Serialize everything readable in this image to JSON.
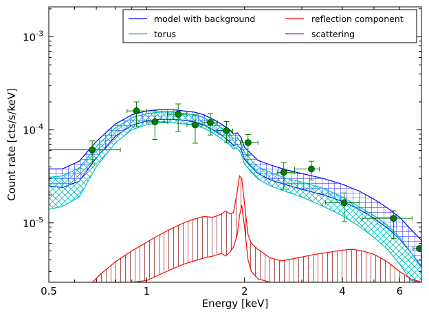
{
  "chart_data": {
    "type": "line",
    "xscale": "log",
    "yscale": "log",
    "xlim": [
      0.5,
      7.0
    ],
    "ylim": [
      2.3e-06,
      0.0021
    ],
    "xlabel": "Energy [keV]",
    "ylabel": "Count rate [cts/s/keV]",
    "x_ticks": [
      {
        "value": 0.5,
        "label": "0.5"
      },
      {
        "value": 1,
        "label": "1"
      },
      {
        "value": 2,
        "label": "2"
      },
      {
        "value": 4,
        "label": "4"
      },
      {
        "value": 6,
        "label": "6"
      }
    ],
    "y_ticks": [
      {
        "value": 1e-05,
        "base": "10",
        "exp": "-5"
      },
      {
        "value": 0.0001,
        "base": "10",
        "exp": "-4"
      },
      {
        "value": 0.001,
        "base": "10",
        "exp": "-3"
      }
    ],
    "grid": false,
    "legend_position": "top-right",
    "legend": [
      {
        "label": "model with background",
        "color": "#0000ff"
      },
      {
        "label": "reflection component",
        "color": "#ff0000"
      },
      {
        "label": "torus",
        "color": "#00bfbf"
      },
      {
        "label": "scattering",
        "color": "#bf00bf"
      }
    ],
    "series": [
      {
        "name": "model with background",
        "color": "#0000ff",
        "fill": "grid",
        "x": [
          0.5,
          0.55,
          0.62,
          0.7,
          0.8,
          0.9,
          1.0,
          1.1,
          1.2,
          1.3,
          1.4,
          1.5,
          1.6,
          1.7,
          1.8,
          1.85,
          1.9,
          1.95,
          2.0,
          2.1,
          2.2,
          2.4,
          2.7,
          3.0,
          3.5,
          4.0,
          4.5,
          5.0,
          5.5,
          6.0,
          6.5,
          7.0
        ],
        "upper": [
          3.8e-05,
          3.8e-05,
          4.6e-05,
          7.5e-05,
          0.000115,
          0.000145,
          0.00016,
          0.000165,
          0.000165,
          0.00016,
          0.000155,
          0.000145,
          0.00013,
          0.000115,
          0.0001,
          9e-05,
          9.3e-05,
          8.3e-05,
          6.5e-05,
          5.5e-05,
          4.7e-05,
          4.2e-05,
          3.7e-05,
          3.4e-05,
          3e-05,
          2.6e-05,
          2.2e-05,
          1.8e-05,
          1.45e-05,
          1.15e-05,
          8.5e-06,
          6.5e-06
        ],
        "lower": [
          2.5e-05,
          2.4e-05,
          2.8e-05,
          5e-05,
          8.5e-05,
          0.000112,
          0.000125,
          0.00013,
          0.00013,
          0.000127,
          0.000122,
          0.000113,
          0.0001,
          8.7e-05,
          7.5e-05,
          6.8e-05,
          7e-05,
          6.2e-05,
          4.8e-05,
          4e-05,
          3.4e-05,
          2.9e-05,
          2.55e-05,
          2.3e-05,
          2e-05,
          1.7e-05,
          1.4e-05,
          1.12e-05,
          8.8e-06,
          6.7e-06,
          4.8e-06,
          3.4e-06
        ]
      },
      {
        "name": "torus",
        "color": "#00bfbf",
        "fill": "crosshatch",
        "x": [
          0.5,
          0.55,
          0.62,
          0.7,
          0.8,
          0.9,
          1.0,
          1.1,
          1.2,
          1.3,
          1.4,
          1.5,
          1.6,
          1.7,
          1.8,
          1.85,
          1.9,
          1.95,
          2.0,
          2.1,
          2.2,
          2.4,
          2.7,
          3.0,
          3.5,
          4.0,
          4.5,
          5.0,
          5.5,
          6.0,
          6.5,
          7.0
        ],
        "upper": [
          3.1e-05,
          3.2e-05,
          3.9e-05,
          6.6e-05,
          0.000105,
          0.000135,
          0.00015,
          0.000155,
          0.000155,
          0.00015,
          0.000145,
          0.000135,
          0.00012,
          0.000105,
          9e-05,
          8e-05,
          8.3e-05,
          7.3e-05,
          5.7e-05,
          4.7e-05,
          4e-05,
          3.5e-05,
          3e-05,
          2.75e-05,
          2.35e-05,
          1.9e-05,
          1.5e-05,
          1.2e-05,
          9.5e-06,
          7e-06,
          4.8e-06,
          3.3e-06
        ],
        "lower": [
          1.4e-05,
          1.5e-05,
          1.9e-05,
          4e-05,
          7.2e-05,
          0.0001,
          0.000114,
          0.000119,
          0.000119,
          0.000116,
          0.000112,
          0.000104,
          9.2e-05,
          8e-05,
          6.9e-05,
          6.2e-05,
          6.4e-05,
          5.6e-05,
          4.3e-05,
          3.5e-05,
          2.95e-05,
          2.5e-05,
          2.15e-05,
          1.9e-05,
          1.5e-05,
          1.2e-05,
          9.2e-06,
          7e-06,
          5.2e-06,
          3.6e-06,
          2.4e-06,
          2.3e-06
        ]
      },
      {
        "name": "reflection component",
        "color": "#ff0000",
        "fill": "vertical-lines",
        "x": [
          0.68,
          0.72,
          0.8,
          0.9,
          1.0,
          1.1,
          1.2,
          1.3,
          1.4,
          1.5,
          1.6,
          1.7,
          1.75,
          1.8,
          1.85,
          1.9,
          1.93,
          1.96,
          2.0,
          2.05,
          2.1,
          2.2,
          2.4,
          2.6,
          2.8,
          3.0,
          3.3,
          3.6,
          4.0,
          4.3,
          4.6,
          5.0,
          5.5,
          6.0,
          6.5,
          7.0
        ],
        "upper": [
          2.3e-06,
          2.8e-06,
          3.8e-06,
          5e-06,
          6.2e-06,
          7.5e-06,
          8.8e-06,
          1e-05,
          1.1e-05,
          1.17e-05,
          1.15e-05,
          1.25e-05,
          1.35e-05,
          1.25e-05,
          1.3e-05,
          2.2e-05,
          3.2e-05,
          3e-05,
          1.6e-05,
          7.5e-06,
          6e-06,
          5.2e-06,
          4.2e-06,
          3.9e-06,
          4.1e-06,
          4.3e-06,
          4.6e-06,
          4.8e-06,
          5.1e-06,
          5.2e-06,
          5e-06,
          4.6e-06,
          3.8e-06,
          3e-06,
          2.5e-06,
          2.3e-06
        ],
        "lower": [
          2.3e-06,
          2.3e-06,
          2.3e-06,
          2.3e-06,
          2.4e-06,
          2.8e-06,
          3.2e-06,
          3.6e-06,
          3.9e-06,
          4.2e-06,
          4.4e-06,
          4.7e-06,
          4.4e-06,
          4.8e-06,
          5.5e-06,
          7.5e-06,
          1.2e-05,
          1.55e-05,
          9e-06,
          4e-06,
          3e-06,
          2.5e-06,
          2.3e-06,
          2.3e-06,
          2.3e-06,
          2.3e-06,
          2.3e-06,
          2.3e-06,
          2.3e-06,
          2.3e-06,
          2.3e-06,
          2.3e-06,
          2.3e-06,
          2.3e-06,
          2.3e-06,
          2.3e-06
        ]
      },
      {
        "name": "scattering",
        "color": "#bf00bf",
        "x": [],
        "y": []
      }
    ],
    "data_points": {
      "color": "#008000",
      "points": [
        {
          "x": 0.68,
          "y": 6.1e-05,
          "xlo": 0.5,
          "xhi": 0.83,
          "ylo": 4.3e-05,
          "yhi": 7.6e-05
        },
        {
          "x": 0.93,
          "y": 0.00016,
          "xlo": 0.87,
          "xhi": 1.0,
          "ylo": 0.000108,
          "yhi": 0.0002
        },
        {
          "x": 1.06,
          "y": 0.000122,
          "xlo": 1.0,
          "xhi": 1.16,
          "ylo": 7.9e-05,
          "yhi": 0.00016
        },
        {
          "x": 1.25,
          "y": 0.000147,
          "xlo": 1.16,
          "xhi": 1.33,
          "ylo": 9.6e-05,
          "yhi": 0.00019
        },
        {
          "x": 1.41,
          "y": 0.000113,
          "xlo": 1.33,
          "xhi": 1.48,
          "ylo": 7.2e-05,
          "yhi": 0.000145
        },
        {
          "x": 1.57,
          "y": 0.00012,
          "xlo": 1.48,
          "xhi": 1.65,
          "ylo": 8.8e-05,
          "yhi": 0.00015
        },
        {
          "x": 1.76,
          "y": 9.8e-05,
          "xlo": 1.65,
          "xhi": 1.84,
          "ylo": 7.3e-05,
          "yhi": 0.000123
        },
        {
          "x": 2.05,
          "y": 7.3e-05,
          "xlo": 1.94,
          "xhi": 2.2,
          "ylo": 5.3e-05,
          "yhi": 8.9e-05
        },
        {
          "x": 2.64,
          "y": 3.5e-05,
          "xlo": 2.52,
          "xhi": 2.85,
          "ylo": 2.3e-05,
          "yhi": 4.5e-05
        },
        {
          "x": 3.21,
          "y": 3.8e-05,
          "xlo": 2.85,
          "xhi": 3.4,
          "ylo": 2.9e-05,
          "yhi": 4.6e-05
        },
        {
          "x": 4.05,
          "y": 1.65e-05,
          "xlo": 3.55,
          "xhi": 4.5,
          "ylo": 1.03e-05,
          "yhi": 2.1e-05
        },
        {
          "x": 5.75,
          "y": 1.12e-05,
          "xlo": 4.6,
          "xhi": 6.55,
          "ylo": 6.8e-06,
          "yhi": 1.35e-05
        },
        {
          "x": 6.9,
          "y": 5.3e-06,
          "xlo": 6.6,
          "xhi": 7.2,
          "ylo": 5.1e-06,
          "yhi": 5.5e-06
        }
      ]
    }
  }
}
